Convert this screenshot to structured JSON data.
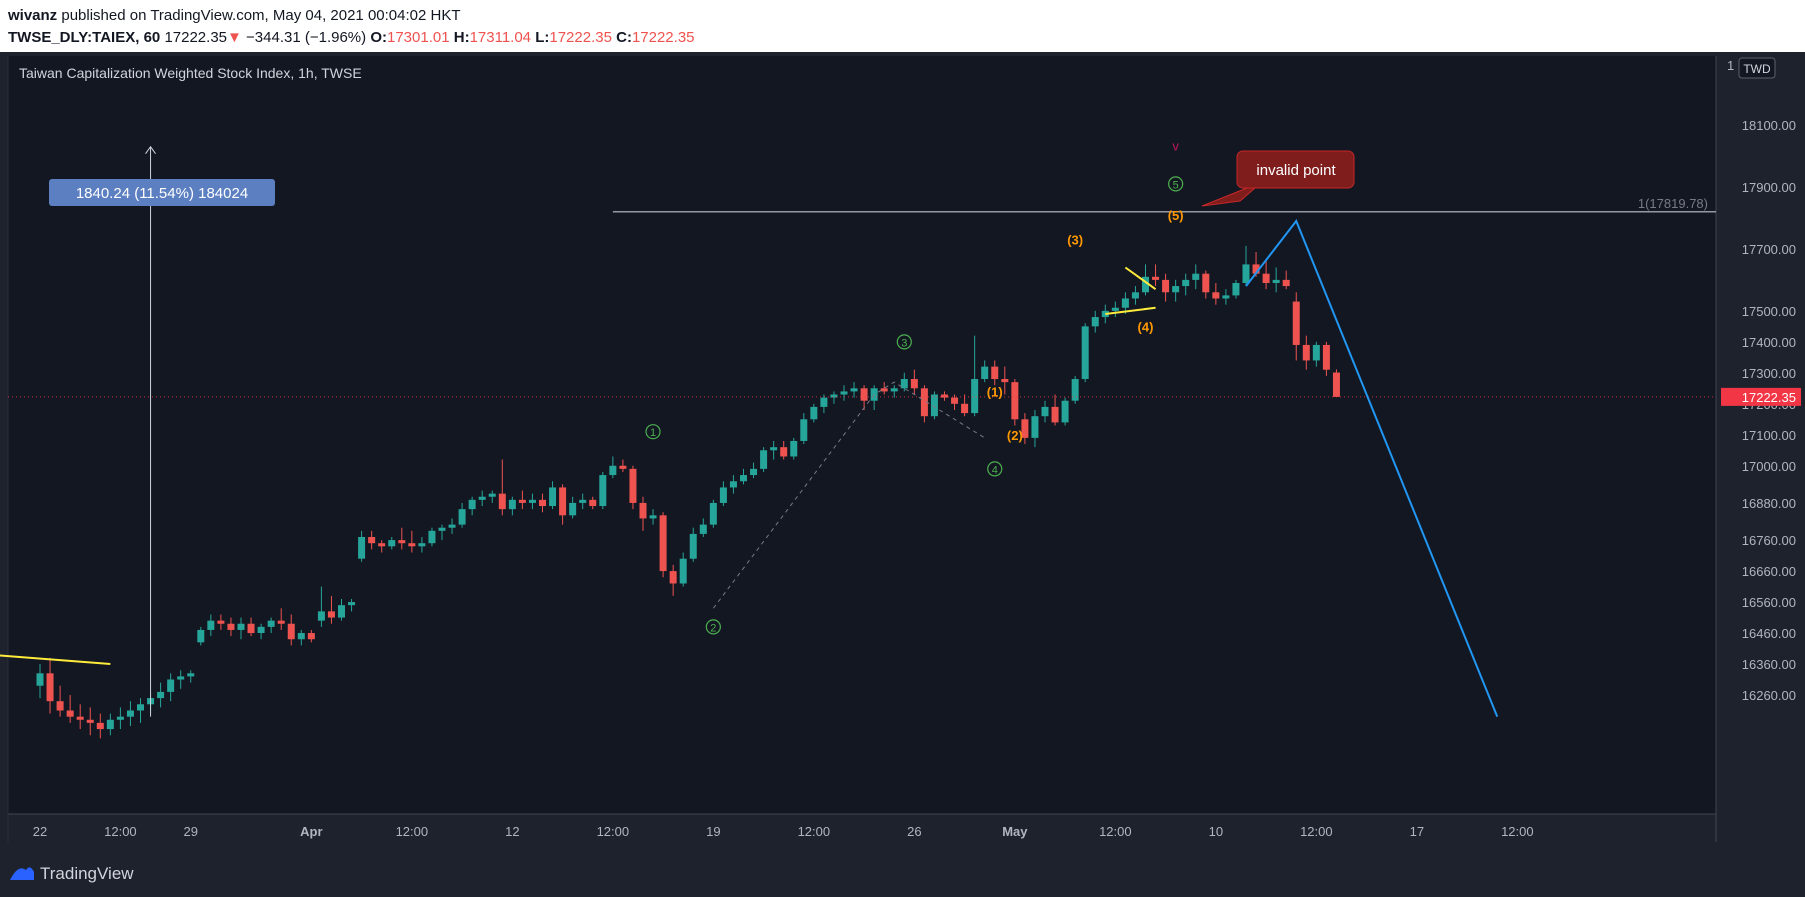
{
  "header": {
    "author": "wivanz",
    "published_text": "published on TradingView.com, May 04, 2021 00:04:02 HKT",
    "symbol": "TWSE_DLY:TAIEX, 60",
    "last": "17222.35",
    "change_arrow": "▼",
    "change": "−344.31 (−1.96%)",
    "open_label": "O:",
    "open": "17301.01",
    "high_label": "H:",
    "high": "17311.04",
    "low_label": "L:",
    "low": "17222.35",
    "close_label": "C:",
    "close": "17222.35"
  },
  "footer": {
    "brand": "TradingView",
    "logo_icon": "tradingview-logo-icon"
  },
  "chart_data": {
    "type": "candlestick",
    "title": "Taiwan Capitalization Weighted Stock Index, 1h, TWSE",
    "currency": "TWD",
    "axis_top_label": "1",
    "y_ticks": [
      18100,
      17900,
      17700,
      17500,
      17400,
      17300,
      17200,
      17100,
      17000,
      16880,
      16760,
      16660,
      16560,
      16460,
      16360,
      16260
    ],
    "y_tick_labels": [
      "18100.00",
      "17900.00",
      "17700.00",
      "17500.00",
      "17400.00",
      "17300.00",
      "17200.00",
      "17100.00",
      "17000.00",
      "16880.00",
      "16760.00",
      "16660.00",
      "16560.00",
      "16460.00",
      "16360.00",
      "16260.00"
    ],
    "x_ticks": [
      {
        "label": "22",
        "bar": 0,
        "bold": false
      },
      {
        "label": "12:00",
        "bar": 8,
        "bold": false
      },
      {
        "label": "29",
        "bar": 15,
        "bold": false
      },
      {
        "label": "Apr",
        "bar": 27,
        "bold": true
      },
      {
        "label": "12:00",
        "bar": 37,
        "bold": false
      },
      {
        "label": "12",
        "bar": 47,
        "bold": false
      },
      {
        "label": "12:00",
        "bar": 57,
        "bold": false
      },
      {
        "label": "19",
        "bar": 67,
        "bold": false
      },
      {
        "label": "12:00",
        "bar": 77,
        "bold": false
      },
      {
        "label": "26",
        "bar": 87,
        "bold": false
      },
      {
        "label": "May",
        "bar": 97,
        "bold": true
      },
      {
        "label": "12:00",
        "bar": 107,
        "bold": false
      },
      {
        "label": "10",
        "bar": 117,
        "bold": false
      },
      {
        "label": "12:00",
        "bar": 127,
        "bold": false
      },
      {
        "label": "17",
        "bar": 137,
        "bold": false
      },
      {
        "label": "12:00",
        "bar": 147,
        "bold": false
      }
    ],
    "colors": {
      "up": "#26a69a",
      "down": "#ef5350",
      "elliott_green": "#4caf50",
      "elliott_orange": "#ff9800",
      "projection": "#2196f3",
      "triangle": "#ffeb3b",
      "price_label": "#f23645"
    },
    "current_price": 17222.35,
    "current_price_label": "17222.35",
    "fib_level": 17819.78,
    "fib_label": "1(17819.78)",
    "measure_label": "1840.24 (11.54%) 184024",
    "callout_text": "invalid point",
    "candles": [
      {
        "o": 16290,
        "h": 16360,
        "l": 16250,
        "c": 16330
      },
      {
        "o": 16330,
        "h": 16380,
        "l": 16200,
        "c": 16240
      },
      {
        "o": 16240,
        "h": 16290,
        "l": 16190,
        "c": 16210
      },
      {
        "o": 16210,
        "h": 16260,
        "l": 16170,
        "c": 16190
      },
      {
        "o": 16190,
        "h": 16230,
        "l": 16150,
        "c": 16180
      },
      {
        "o": 16180,
        "h": 16220,
        "l": 16130,
        "c": 16170
      },
      {
        "o": 16170,
        "h": 16200,
        "l": 16120,
        "c": 16150
      },
      {
        "o": 16150,
        "h": 16200,
        "l": 16130,
        "c": 16180
      },
      {
        "o": 16180,
        "h": 16220,
        "l": 16150,
        "c": 16190
      },
      {
        "o": 16190,
        "h": 16240,
        "l": 16160,
        "c": 16210
      },
      {
        "o": 16210,
        "h": 16250,
        "l": 16170,
        "c": 16230
      },
      {
        "o": 16230,
        "h": 16270,
        "l": 16200,
        "c": 16250
      },
      {
        "o": 16250,
        "h": 16300,
        "l": 16220,
        "c": 16270
      },
      {
        "o": 16270,
        "h": 16330,
        "l": 16240,
        "c": 16310
      },
      {
        "o": 16310,
        "h": 16340,
        "l": 16280,
        "c": 16320
      },
      {
        "o": 16320,
        "h": 16340,
        "l": 16300,
        "c": 16330
      },
      {
        "o": 16430,
        "h": 16480,
        "l": 16420,
        "c": 16470
      },
      {
        "o": 16470,
        "h": 16520,
        "l": 16450,
        "c": 16500
      },
      {
        "o": 16500,
        "h": 16520,
        "l": 16470,
        "c": 16490
      },
      {
        "o": 16490,
        "h": 16510,
        "l": 16450,
        "c": 16470
      },
      {
        "o": 16470,
        "h": 16510,
        "l": 16440,
        "c": 16490
      },
      {
        "o": 16490,
        "h": 16510,
        "l": 16450,
        "c": 16460
      },
      {
        "o": 16460,
        "h": 16490,
        "l": 16440,
        "c": 16480
      },
      {
        "o": 16480,
        "h": 16510,
        "l": 16460,
        "c": 16500
      },
      {
        "o": 16500,
        "h": 16540,
        "l": 16470,
        "c": 16490
      },
      {
        "o": 16490,
        "h": 16520,
        "l": 16420,
        "c": 16440
      },
      {
        "o": 16440,
        "h": 16470,
        "l": 16420,
        "c": 16460
      },
      {
        "o": 16460,
        "h": 16470,
        "l": 16430,
        "c": 16440
      },
      {
        "o": 16500,
        "h": 16610,
        "l": 16480,
        "c": 16530
      },
      {
        "o": 16530,
        "h": 16580,
        "l": 16490,
        "c": 16510
      },
      {
        "o": 16510,
        "h": 16570,
        "l": 16500,
        "c": 16550
      },
      {
        "o": 16550,
        "h": 16570,
        "l": 16530,
        "c": 16560
      },
      {
        "o": 16700,
        "h": 16790,
        "l": 16690,
        "c": 16770
      },
      {
        "o": 16770,
        "h": 16790,
        "l": 16730,
        "c": 16750
      },
      {
        "o": 16750,
        "h": 16760,
        "l": 16720,
        "c": 16740
      },
      {
        "o": 16740,
        "h": 16770,
        "l": 16730,
        "c": 16760
      },
      {
        "o": 16760,
        "h": 16800,
        "l": 16730,
        "c": 16750
      },
      {
        "o": 16750,
        "h": 16790,
        "l": 16720,
        "c": 16740
      },
      {
        "o": 16740,
        "h": 16770,
        "l": 16720,
        "c": 16750
      },
      {
        "o": 16750,
        "h": 16800,
        "l": 16740,
        "c": 16790
      },
      {
        "o": 16790,
        "h": 16810,
        "l": 16760,
        "c": 16800
      },
      {
        "o": 16800,
        "h": 16830,
        "l": 16780,
        "c": 16810
      },
      {
        "o": 16810,
        "h": 16880,
        "l": 16800,
        "c": 16860
      },
      {
        "o": 16860,
        "h": 16900,
        "l": 16840,
        "c": 16890
      },
      {
        "o": 16890,
        "h": 16920,
        "l": 16870,
        "c": 16900
      },
      {
        "o": 16900,
        "h": 16920,
        "l": 16880,
        "c": 16910
      },
      {
        "o": 16910,
        "h": 17020,
        "l": 16840,
        "c": 16860
      },
      {
        "o": 16860,
        "h": 16900,
        "l": 16840,
        "c": 16890
      },
      {
        "o": 16890,
        "h": 16920,
        "l": 16860,
        "c": 16880
      },
      {
        "o": 16880,
        "h": 16910,
        "l": 16860,
        "c": 16890
      },
      {
        "o": 16890,
        "h": 16910,
        "l": 16850,
        "c": 16870
      },
      {
        "o": 16870,
        "h": 16950,
        "l": 16860,
        "c": 16930
      },
      {
        "o": 16930,
        "h": 16940,
        "l": 16810,
        "c": 16840
      },
      {
        "o": 16840,
        "h": 16900,
        "l": 16830,
        "c": 16880
      },
      {
        "o": 16880,
        "h": 16910,
        "l": 16860,
        "c": 16890
      },
      {
        "o": 16890,
        "h": 16900,
        "l": 16860,
        "c": 16870
      },
      {
        "o": 16870,
        "h": 16980,
        "l": 16860,
        "c": 16970
      },
      {
        "o": 16970,
        "h": 17030,
        "l": 16960,
        "c": 17000
      },
      {
        "o": 17000,
        "h": 17020,
        "l": 16980,
        "c": 16990
      },
      {
        "o": 16990,
        "h": 17000,
        "l": 16860,
        "c": 16880
      },
      {
        "o": 16880,
        "h": 16900,
        "l": 16790,
        "c": 16830
      },
      {
        "o": 16830,
        "h": 16860,
        "l": 16810,
        "c": 16840
      },
      {
        "o": 16840,
        "h": 16850,
        "l": 16640,
        "c": 16660
      },
      {
        "o": 16660,
        "h": 16680,
        "l": 16580,
        "c": 16620
      },
      {
        "o": 16620,
        "h": 16720,
        "l": 16610,
        "c": 16700
      },
      {
        "o": 16700,
        "h": 16800,
        "l": 16690,
        "c": 16780
      },
      {
        "o": 16780,
        "h": 16830,
        "l": 16770,
        "c": 16810
      },
      {
        "o": 16810,
        "h": 16890,
        "l": 16800,
        "c": 16880
      },
      {
        "o": 16880,
        "h": 16950,
        "l": 16870,
        "c": 16930
      },
      {
        "o": 16930,
        "h": 16970,
        "l": 16910,
        "c": 16950
      },
      {
        "o": 16950,
        "h": 16990,
        "l": 16940,
        "c": 16970
      },
      {
        "o": 16970,
        "h": 17010,
        "l": 16960,
        "c": 16990
      },
      {
        "o": 16990,
        "h": 17060,
        "l": 16980,
        "c": 17050
      },
      {
        "o": 17050,
        "h": 17080,
        "l": 17020,
        "c": 17060
      },
      {
        "o": 17060,
        "h": 17080,
        "l": 17020,
        "c": 17030
      },
      {
        "o": 17030,
        "h": 17090,
        "l": 17020,
        "c": 17080
      },
      {
        "o": 17080,
        "h": 17170,
        "l": 17070,
        "c": 17150
      },
      {
        "o": 17150,
        "h": 17200,
        "l": 17140,
        "c": 17190
      },
      {
        "o": 17190,
        "h": 17230,
        "l": 17170,
        "c": 17220
      },
      {
        "o": 17220,
        "h": 17240,
        "l": 17200,
        "c": 17230
      },
      {
        "o": 17230,
        "h": 17260,
        "l": 17210,
        "c": 17240
      },
      {
        "o": 17240,
        "h": 17270,
        "l": 17220,
        "c": 17250
      },
      {
        "o": 17250,
        "h": 17260,
        "l": 17180,
        "c": 17210
      },
      {
        "o": 17210,
        "h": 17260,
        "l": 17180,
        "c": 17250
      },
      {
        "o": 17250,
        "h": 17270,
        "l": 17230,
        "c": 17240
      },
      {
        "o": 17240,
        "h": 17260,
        "l": 17220,
        "c": 17250
      },
      {
        "o": 17250,
        "h": 17300,
        "l": 17240,
        "c": 17280
      },
      {
        "o": 17280,
        "h": 17310,
        "l": 17230,
        "c": 17250
      },
      {
        "o": 17250,
        "h": 17260,
        "l": 17140,
        "c": 17160
      },
      {
        "o": 17160,
        "h": 17240,
        "l": 17150,
        "c": 17230
      },
      {
        "o": 17230,
        "h": 17240,
        "l": 17210,
        "c": 17220
      },
      {
        "o": 17220,
        "h": 17230,
        "l": 17180,
        "c": 17200
      },
      {
        "o": 17200,
        "h": 17230,
        "l": 17160,
        "c": 17170
      },
      {
        "o": 17170,
        "h": 17420,
        "l": 17160,
        "c": 17280
      },
      {
        "o": 17280,
        "h": 17340,
        "l": 17270,
        "c": 17320
      },
      {
        "o": 17320,
        "h": 17340,
        "l": 17260,
        "c": 17280
      },
      {
        "o": 17280,
        "h": 17320,
        "l": 17230,
        "c": 17270
      },
      {
        "o": 17270,
        "h": 17280,
        "l": 17130,
        "c": 17150
      },
      {
        "o": 17150,
        "h": 17170,
        "l": 17070,
        "c": 17090
      },
      {
        "o": 17090,
        "h": 17180,
        "l": 17060,
        "c": 17160
      },
      {
        "o": 17160,
        "h": 17210,
        "l": 17140,
        "c": 17190
      },
      {
        "o": 17190,
        "h": 17230,
        "l": 17130,
        "c": 17140
      },
      {
        "o": 17140,
        "h": 17220,
        "l": 17130,
        "c": 17210
      },
      {
        "o": 17210,
        "h": 17290,
        "l": 17200,
        "c": 17280
      },
      {
        "o": 17280,
        "h": 17460,
        "l": 17270,
        "c": 17450
      },
      {
        "o": 17450,
        "h": 17500,
        "l": 17430,
        "c": 17480
      },
      {
        "o": 17480,
        "h": 17520,
        "l": 17460,
        "c": 17500
      },
      {
        "o": 17500,
        "h": 17530,
        "l": 17480,
        "c": 17510
      },
      {
        "o": 17510,
        "h": 17560,
        "l": 17490,
        "c": 17540
      },
      {
        "o": 17540,
        "h": 17580,
        "l": 17520,
        "c": 17560
      },
      {
        "o": 17560,
        "h": 17650,
        "l": 17550,
        "c": 17610
      },
      {
        "o": 17610,
        "h": 17650,
        "l": 17580,
        "c": 17600
      },
      {
        "o": 17600,
        "h": 17620,
        "l": 17530,
        "c": 17560
      },
      {
        "o": 17560,
        "h": 17600,
        "l": 17530,
        "c": 17580
      },
      {
        "o": 17580,
        "h": 17620,
        "l": 17550,
        "c": 17600
      },
      {
        "o": 17600,
        "h": 17650,
        "l": 17570,
        "c": 17620
      },
      {
        "o": 17620,
        "h": 17630,
        "l": 17540,
        "c": 17560
      },
      {
        "o": 17560,
        "h": 17590,
        "l": 17520,
        "c": 17540
      },
      {
        "o": 17540,
        "h": 17570,
        "l": 17520,
        "c": 17550
      },
      {
        "o": 17550,
        "h": 17600,
        "l": 17540,
        "c": 17590
      },
      {
        "o": 17590,
        "h": 17710,
        "l": 17580,
        "c": 17650
      },
      {
        "o": 17650,
        "h": 17690,
        "l": 17610,
        "c": 17620
      },
      {
        "o": 17620,
        "h": 17660,
        "l": 17570,
        "c": 17590
      },
      {
        "o": 17590,
        "h": 17640,
        "l": 17560,
        "c": 17600
      },
      {
        "o": 17600,
        "h": 17630,
        "l": 17570,
        "c": 17580
      },
      {
        "o": 17530,
        "h": 17560,
        "l": 17340,
        "c": 17390
      },
      {
        "o": 17390,
        "h": 17420,
        "l": 17310,
        "c": 17340
      },
      {
        "o": 17340,
        "h": 17400,
        "l": 17320,
        "c": 17390
      },
      {
        "o": 17390,
        "h": 17400,
        "l": 17290,
        "c": 17310
      },
      {
        "o": 17301.01,
        "h": 17311.04,
        "l": 17222.35,
        "c": 17222.35
      }
    ],
    "projection": [
      {
        "bar": 120,
        "y": 17580
      },
      {
        "bar": 125,
        "y": 17790
      },
      {
        "bar": 145,
        "y": 16190
      }
    ],
    "measure_line": {
      "bar": 11,
      "from": 16190,
      "to": 18030
    },
    "fib_line": {
      "from_bar": 57
    },
    "trend_line": {
      "from_bar": -5,
      "from_y": 16390,
      "to_bar": 7,
      "to_y": 16360
    },
    "green_wave_markers": [
      {
        "label": "1",
        "bar": 61,
        "y": 17110
      },
      {
        "label": "2",
        "bar": 67,
        "y": 16480
      },
      {
        "label": "3",
        "bar": 86,
        "y": 17400
      },
      {
        "label": "4",
        "bar": 95,
        "y": 16990
      },
      {
        "label": "5",
        "bar": 113,
        "y": 17910
      }
    ],
    "orange_wave_markers": [
      {
        "label": "(1)",
        "bar": 95,
        "y": 17240
      },
      {
        "label": "(2)",
        "bar": 97,
        "y": 17100
      },
      {
        "label": "(3)",
        "bar": 103,
        "y": 17730
      },
      {
        "label": "(4)",
        "bar": 110,
        "y": 17450
      },
      {
        "label": "(5)",
        "bar": 113,
        "y": 17810
      }
    ],
    "top_marker": {
      "label": "v",
      "bar": 113,
      "y": 18030
    },
    "dashed_wave_path": [
      {
        "bar": 67,
        "y": 16540
      },
      {
        "bar": 83,
        "y": 17230
      },
      {
        "bar": 85,
        "y": 17270
      },
      {
        "bar": 94,
        "y": 17090
      }
    ],
    "triangle_lines": [
      {
        "a": {
          "bar": 106,
          "y": 17490
        },
        "b": {
          "bar": 111,
          "y": 17510
        }
      },
      {
        "a": {
          "bar": 108,
          "y": 17640
        },
        "b": {
          "bar": 111,
          "y": 17570
        }
      }
    ]
  }
}
